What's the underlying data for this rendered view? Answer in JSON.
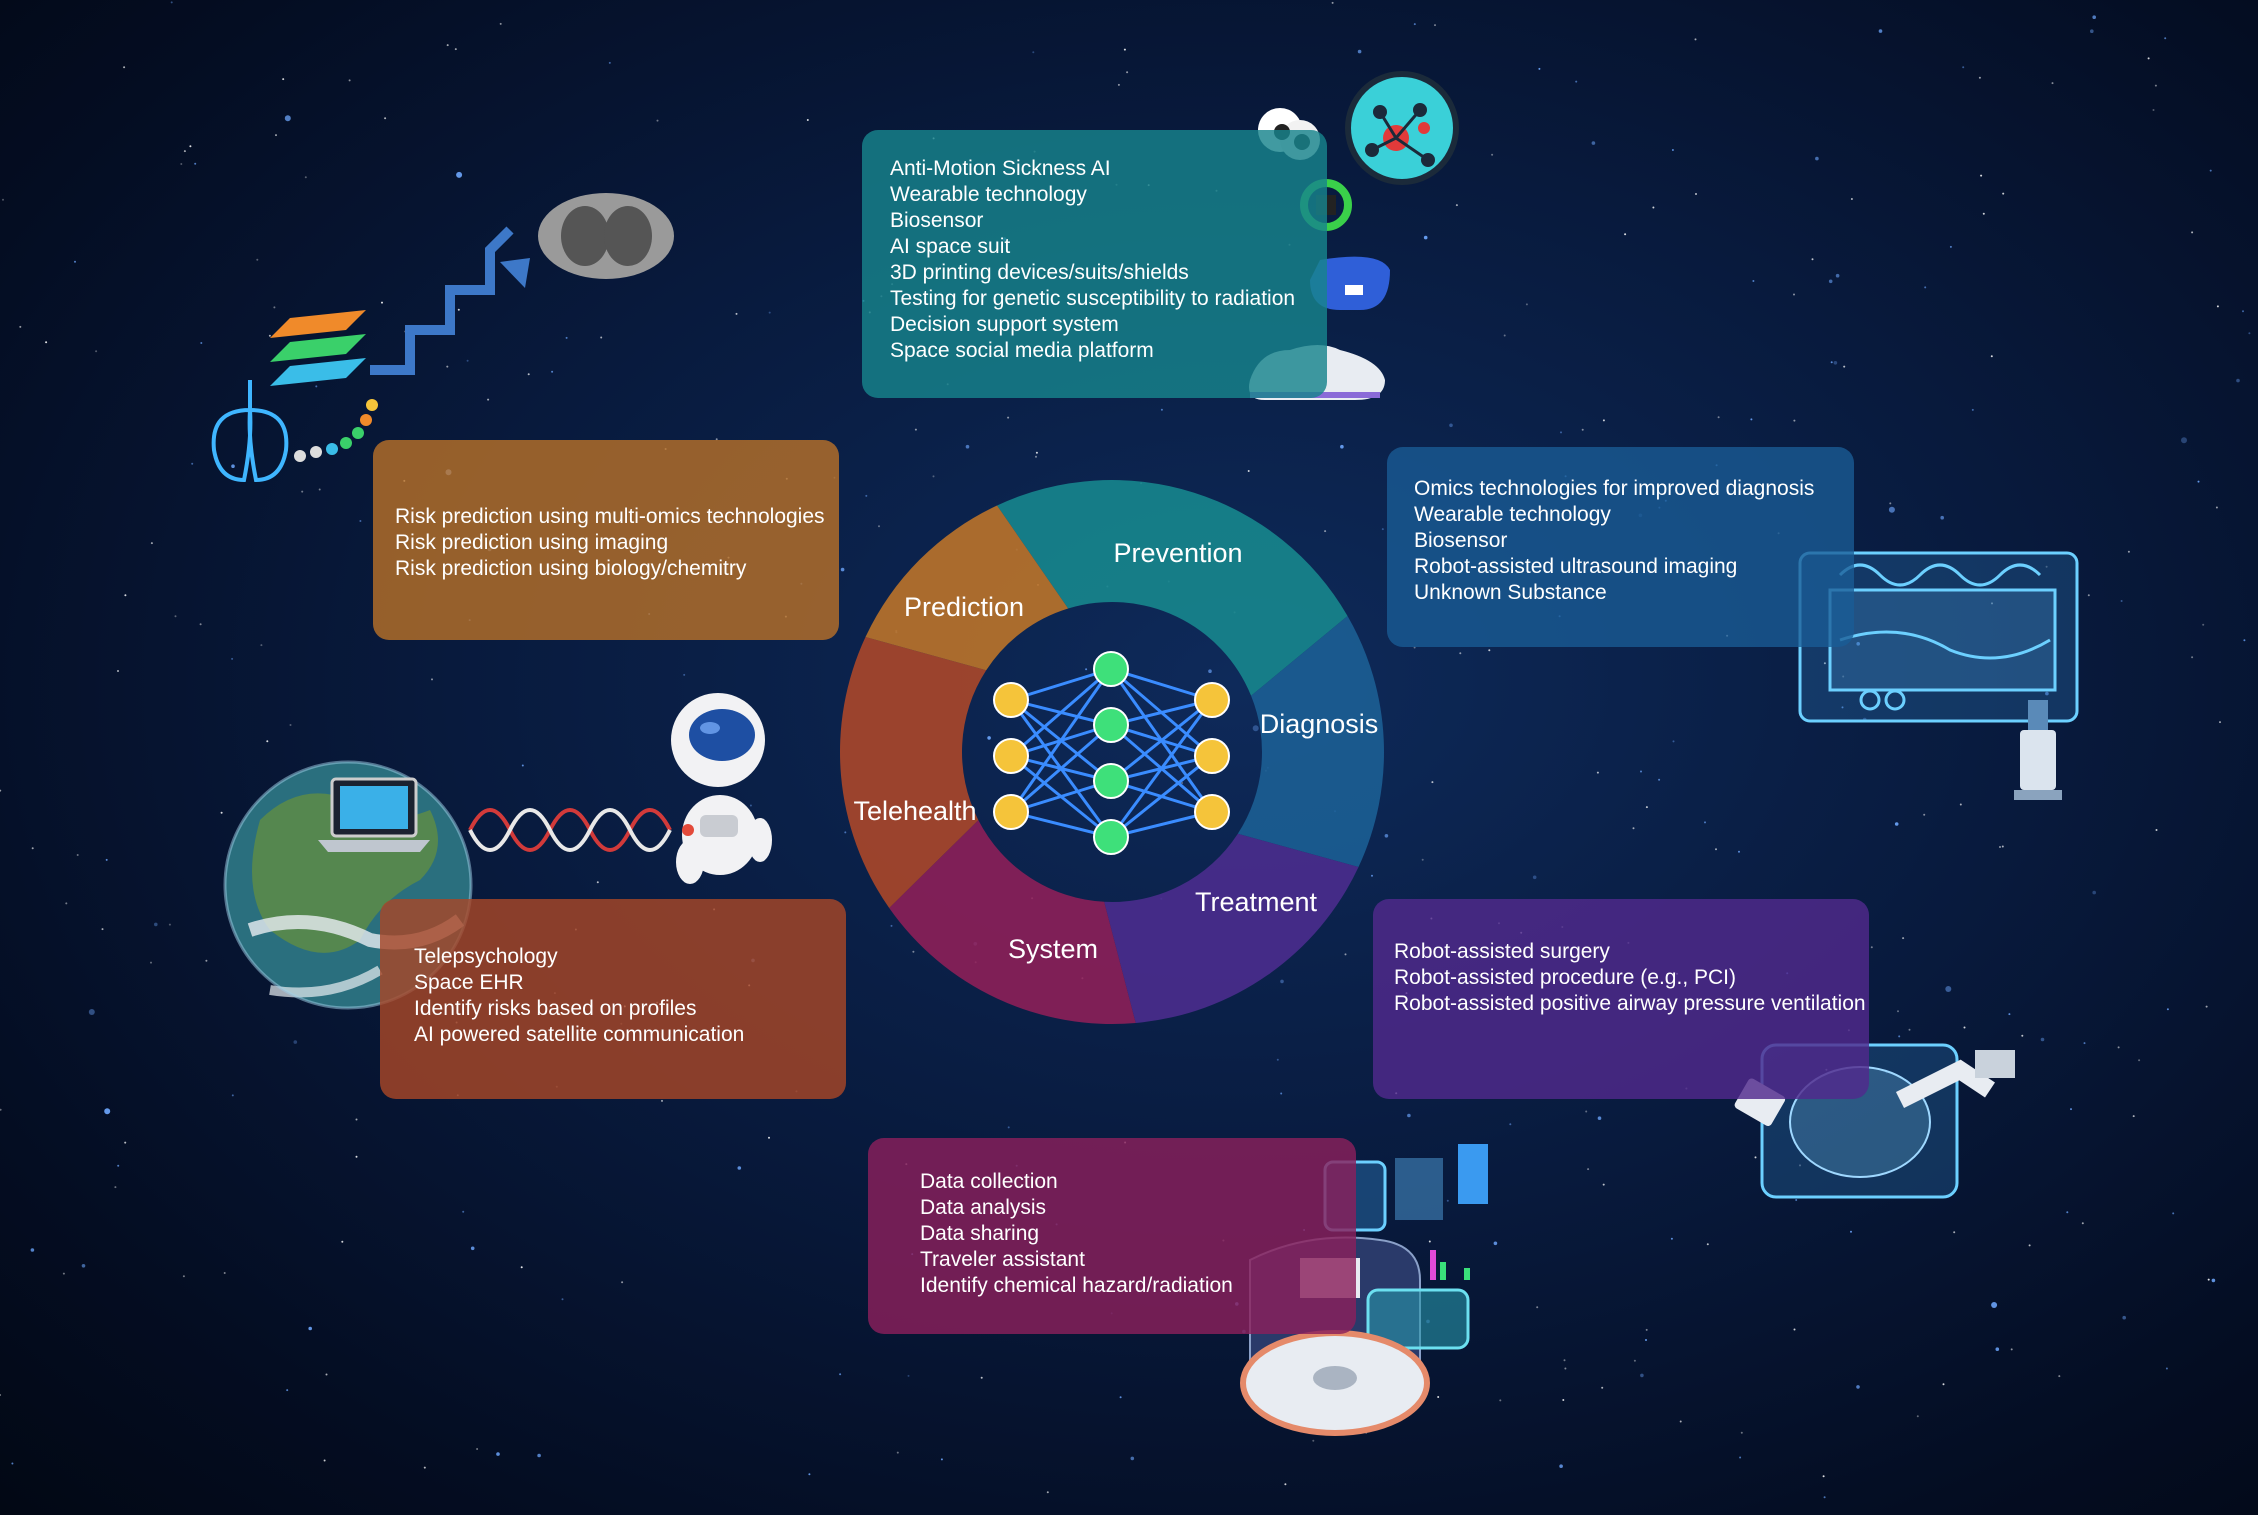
{
  "ring": {
    "prevention": "Prevention",
    "diagnosis": "Diagnosis",
    "treatment": "Treatment",
    "system": "System",
    "telehealth": "Telehealth",
    "prediction": "Prediction"
  },
  "panels": {
    "prevention": [
      "Anti-Motion Sickness AI",
      "Wearable technology",
      "Biosensor",
      "AI space suit",
      "3D printing devices/suits/shields",
      "Testing for genetic susceptibility to radiation",
      "Decision support system",
      "Space social media platform"
    ],
    "prediction": [
      "Risk prediction using multi-omics technologies",
      "Risk prediction using imaging",
      "Risk prediction using biology/chemitry"
    ],
    "diagnosis": [
      "Omics technologies for improved diagnosis",
      "Wearable technology",
      "Biosensor",
      "Robot-assisted ultrasound imaging",
      "Unknown Substance"
    ],
    "telehealth": [
      "Telepsychology",
      "Space EHR",
      "Identify risks based on profiles",
      "AI powered satellite communication"
    ],
    "treatment": [
      "Robot-assisted surgery",
      "Robot-assisted procedure (e.g., PCI)",
      "Robot-assisted positive airway pressure ventilation"
    ],
    "system": [
      "Data collection",
      "Data analysis",
      "Data sharing",
      "Traveler assistant",
      "Identify chemical hazard/radiation"
    ]
  },
  "colors": {
    "prevention": "#17848c",
    "diagnosis": "#1b5d93",
    "treatment": "#4a2c8c",
    "system": "#8a2058",
    "telehealth": "#a8472a",
    "prediction": "#b8722a",
    "node_yellow": "#f5c43a",
    "node_green": "#3ee07a",
    "network_line": "#3a8cff"
  },
  "icons": [
    "lung-scan-icon",
    "lung-icon",
    "dna-icon",
    "eyeball-robot-icon",
    "molecule-icon",
    "wristband-icon",
    "vr-headset-icon",
    "space-shoe-icon",
    "ultrasound-monitor-icon",
    "ultrasound-robot-icon",
    "surgical-robot-icon",
    "data-dashboard-icon",
    "disc-icon",
    "earth-icon",
    "laptop-icon",
    "astronaut-icon",
    "neural-network-icon"
  ]
}
